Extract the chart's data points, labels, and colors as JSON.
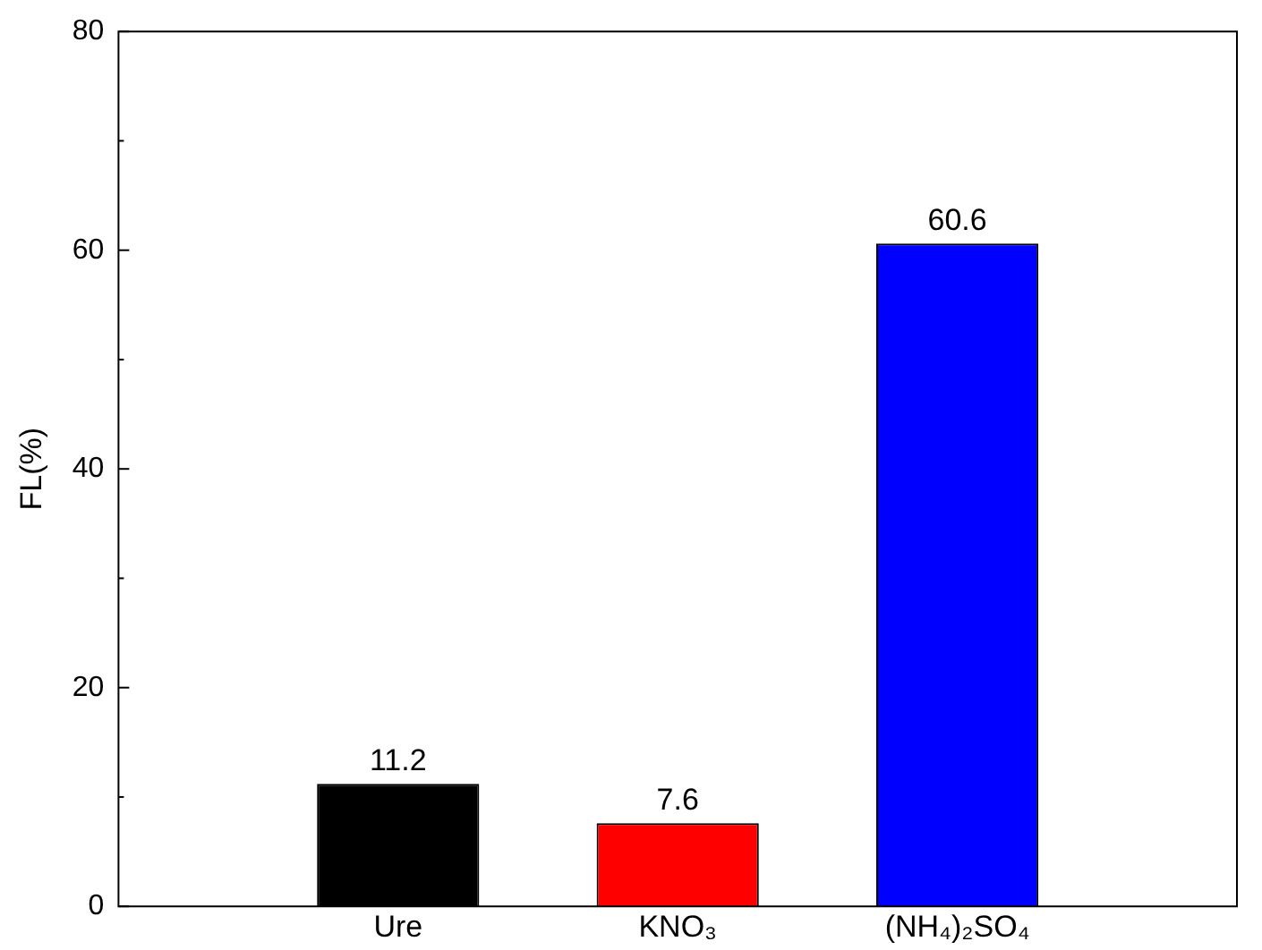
{
  "chart_data": {
    "type": "bar",
    "ylabel": "FL(%)",
    "categories": [
      "Ure",
      "KNO₃",
      "(NH₄)₂SO₄"
    ],
    "values": [
      11.2,
      7.6,
      60.6
    ],
    "colors": [
      "#000000",
      "#ff0000",
      "#0000ff"
    ],
    "ylim": [
      0,
      80
    ],
    "yticks": [
      0,
      20,
      40,
      60,
      80
    ],
    "grid": false,
    "legend": false,
    "data_labels": true
  }
}
